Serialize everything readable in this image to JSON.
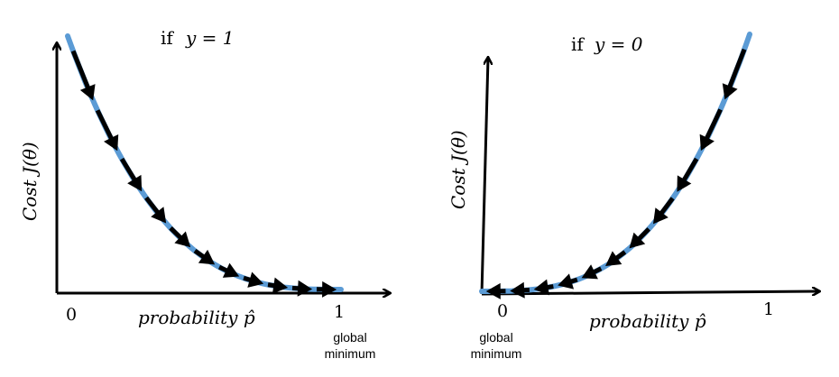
{
  "colors": {
    "curve": "#5b9bd5",
    "arrow": "#000000",
    "text": "#000000"
  },
  "panels": [
    {
      "title_prefix": "if",
      "title_math": "y = 1",
      "ylabel": "Cost J(θ)",
      "xlabel": "probability p̂",
      "tick_left": "0",
      "tick_right": "1",
      "annotation_line1": "global",
      "annotation_line2": "minimum"
    },
    {
      "title_prefix": "if",
      "title_math": "y = 0",
      "ylabel": "Cost J(θ)",
      "xlabel": "probability p̂",
      "tick_left": "0",
      "tick_right": "1",
      "annotation_line1": "global",
      "annotation_line2": "minimum"
    }
  ]
}
